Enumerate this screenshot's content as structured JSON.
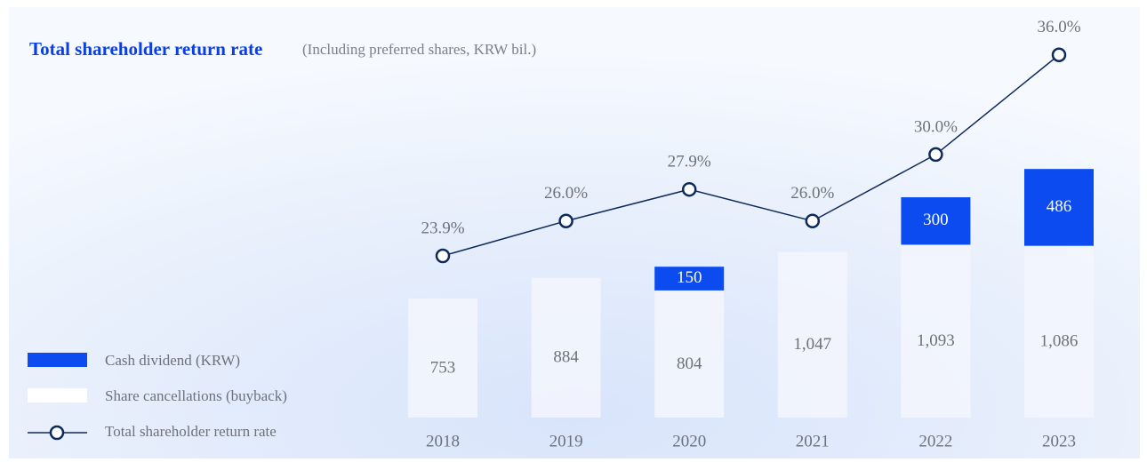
{
  "chart_data": {
    "type": "bar",
    "stacked": true,
    "title": "Total shareholder return rate",
    "subtitle": "(Including preferred shares, KRW bil.)",
    "categories": [
      "2018",
      "2019",
      "2020",
      "2021",
      "2022",
      "2023"
    ],
    "series": [
      {
        "name": "Share cancellations (buyback)",
        "color": "#f3f6fd",
        "values": [
          753,
          884,
          804,
          1047,
          1093,
          1086
        ],
        "value_labels": [
          "753",
          "884",
          "804",
          "1,047",
          "1,093",
          "1,086"
        ]
      },
      {
        "name": "Cash dividend (KRW)",
        "color": "#0b4bf0",
        "values": [
          null,
          null,
          150,
          null,
          300,
          486
        ],
        "value_labels": [
          null,
          null,
          "150",
          null,
          "300",
          "486"
        ]
      },
      {
        "name": "Total shareholder return rate",
        "type": "line",
        "color": "#0d2a5c",
        "values": [
          23.9,
          26.0,
          27.9,
          26.0,
          30.0,
          36.0
        ],
        "value_labels": [
          "23.9%",
          "26.0%",
          "27.9%",
          "26.0%",
          "30.0%",
          "36.0%"
        ]
      }
    ]
  }
}
